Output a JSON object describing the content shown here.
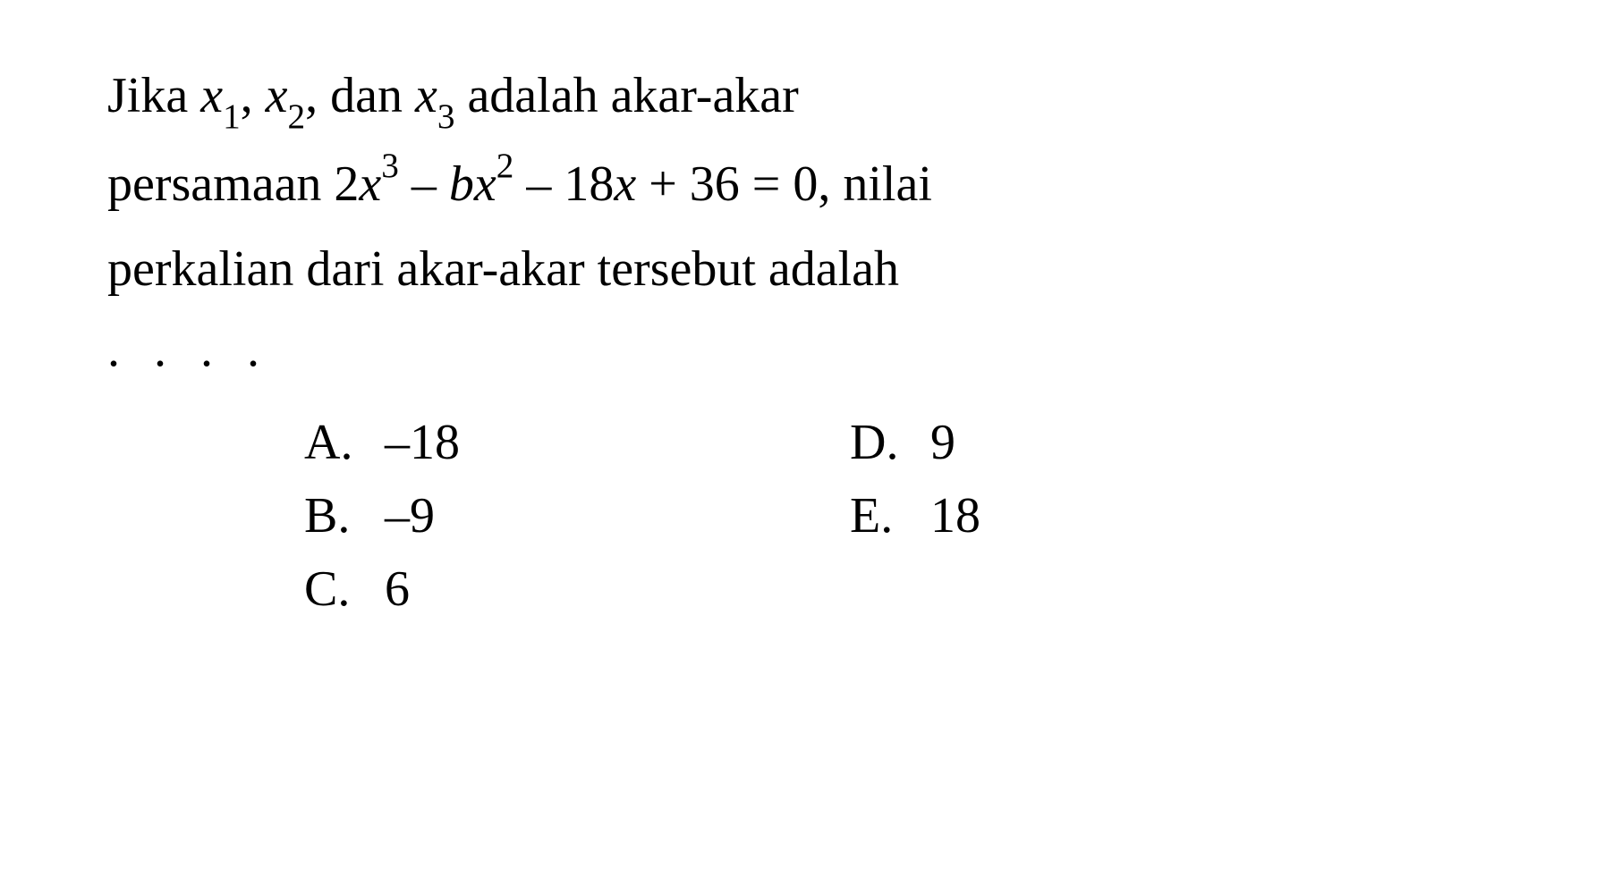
{
  "question": {
    "line1_pre": "Jika ",
    "x1_var": "x",
    "x1_sub": "1",
    "comma1": ", ",
    "x2_var": "x",
    "x2_sub": "2",
    "comma2": ", dan ",
    "x3_var": "x",
    "x3_sub": "3",
    "line1_post": " adalah akar-akar",
    "line2_pre": "persamaan 2",
    "eq_x1": "x",
    "eq_sup1": "3",
    "eq_mid1": " – ",
    "eq_b": "b",
    "eq_x2": "x",
    "eq_sup2": "2",
    "eq_mid2": " – 18",
    "eq_x3": "x",
    "eq_post": " + 36 = 0, nilai",
    "line3": "perkalian dari akar-akar tersebut adalah",
    "dots": ". . . ."
  },
  "options": {
    "a": {
      "letter": "A.",
      "value": "–18"
    },
    "b": {
      "letter": "B.",
      "value": "–9"
    },
    "c": {
      "letter": "C.",
      "value": "6"
    },
    "d": {
      "letter": "D.",
      "value": "9"
    },
    "e": {
      "letter": "E.",
      "value": "18"
    }
  },
  "style": {
    "background_color": "#ffffff",
    "text_color": "#000000",
    "font_family": "Times New Roman",
    "question_fontsize": 56,
    "option_fontsize": 56
  }
}
